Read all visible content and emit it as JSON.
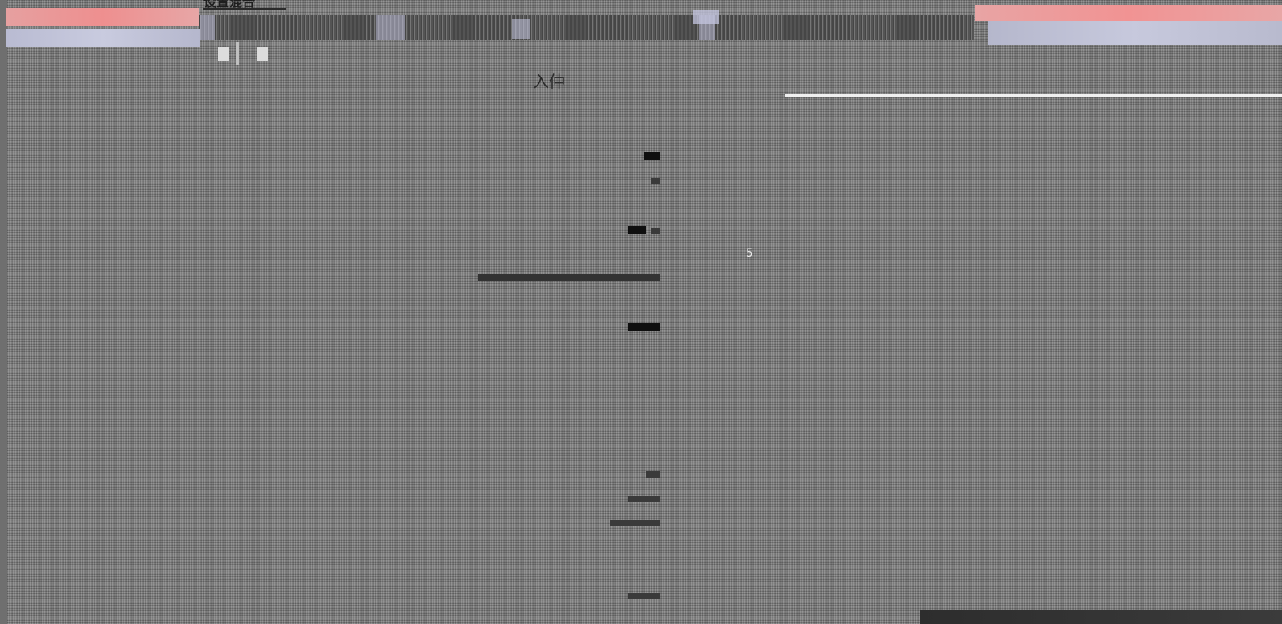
{
  "window": {
    "title": "设置混合"
  },
  "toolbar": {
    "buttons": [
      {
        "name": "tool-1"
      },
      {
        "name": "tool-2"
      },
      {
        "name": "tool-3"
      }
    ]
  },
  "ruler": {
    "label": "入仲"
  },
  "canvas": {
    "cursor_readout": "5"
  },
  "progress": {
    "value_percent": 100
  },
  "colors": {
    "titlebar": "#ee8f8f",
    "tabbar": "#c3c5db",
    "toolbar": "#5d5d5d",
    "canvas": "#7b7b7b",
    "marks": "#0f0f0f"
  }
}
